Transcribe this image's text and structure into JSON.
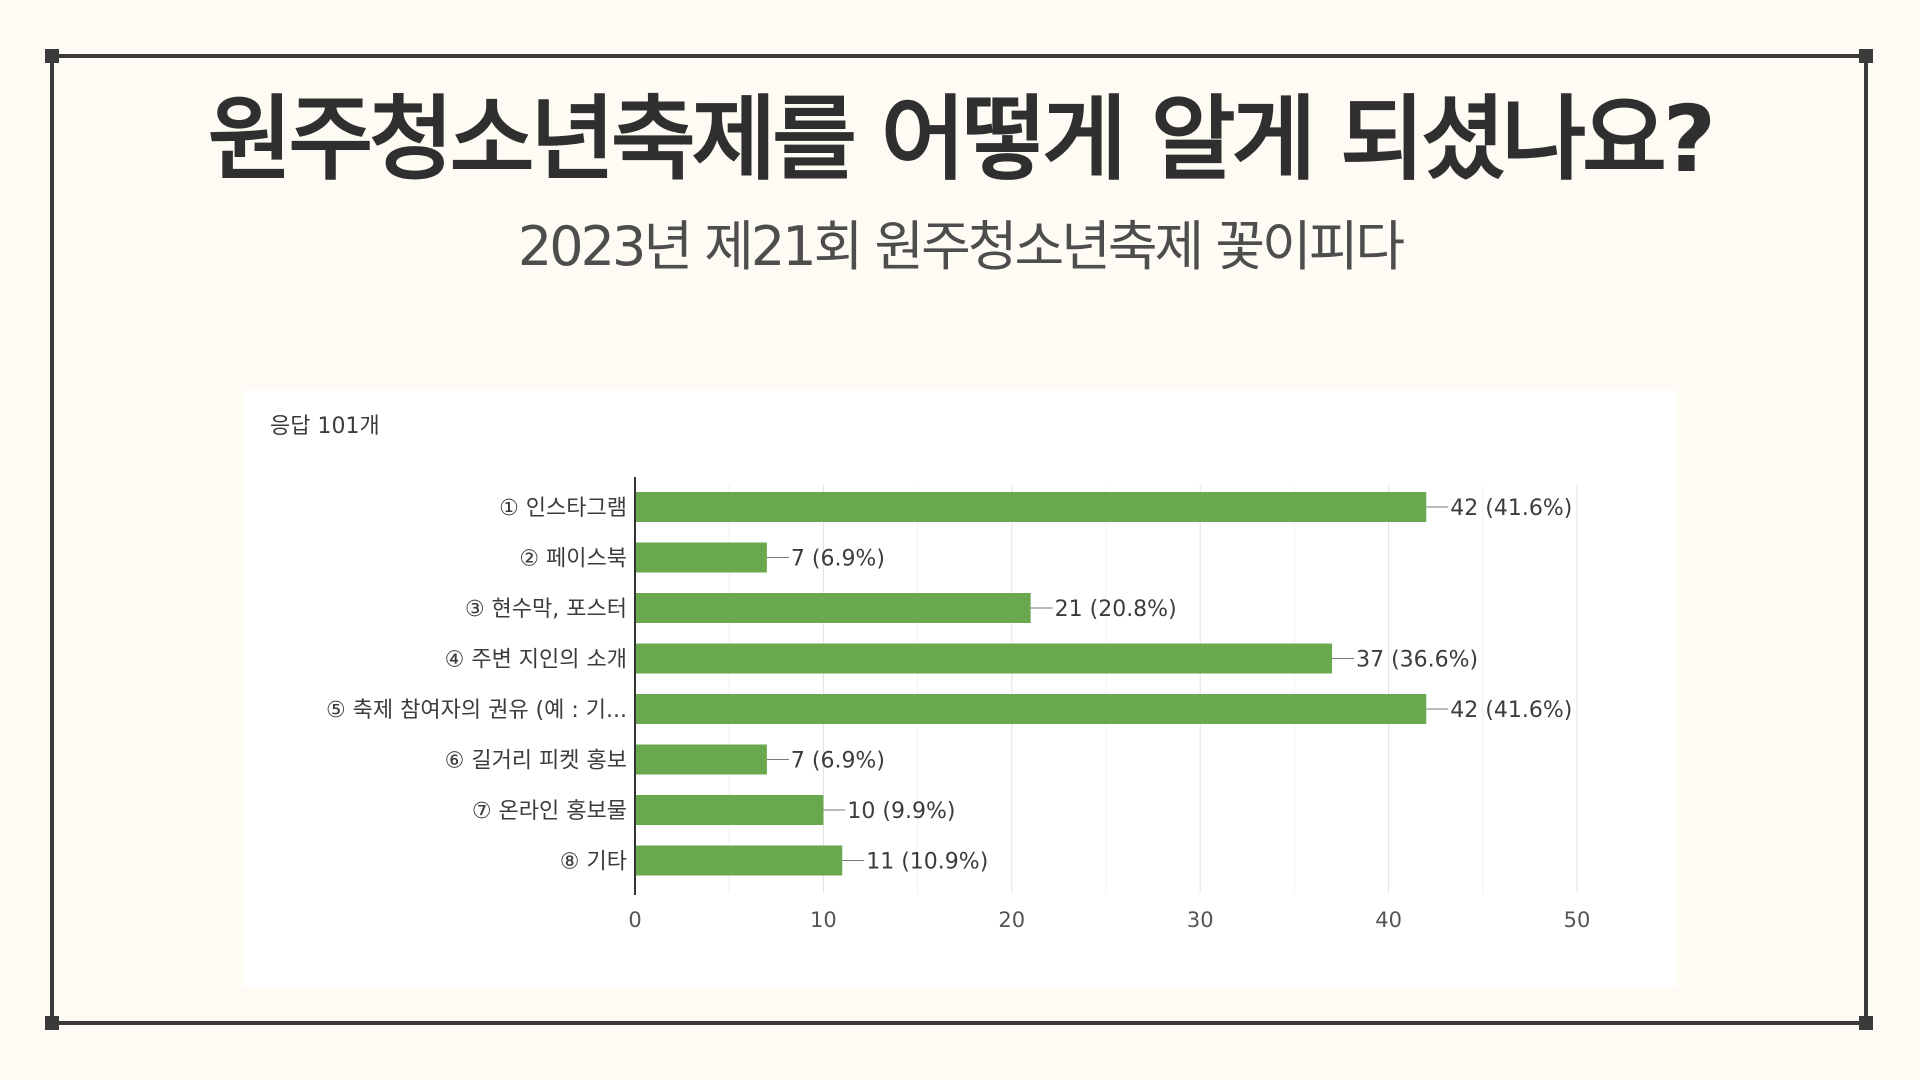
{
  "title": "원주청소년축제를 어떻게 알게 되셨나요?",
  "subtitle": "2023년 제21회 원주청소년축제 꽃이피다",
  "chart_data": {
    "type": "bar",
    "orientation": "horizontal",
    "response_count_label": "응답 101개",
    "categories": [
      "① 인스타그램",
      "② 페이스북",
      "③ 현수막, 포스터",
      "④ 주변 지인의 소개",
      "⑤ 축제 참여자의 권유 (예 : 기...",
      "⑥ 길거리 피켓 홍보",
      "⑦ 온라인 홍보물",
      "⑧ 기타"
    ],
    "values": [
      42,
      7,
      21,
      37,
      42,
      7,
      10,
      11
    ],
    "value_labels": [
      "42 (41.6%)",
      "7 (6.9%)",
      "21 (20.8%)",
      "37 (36.6%)",
      "42 (41.6%)",
      "7 (6.9%)",
      "10 (9.9%)",
      "11 (10.9%)"
    ],
    "xlim": [
      0,
      50
    ],
    "xticks": [
      0,
      10,
      20,
      30,
      40,
      50
    ],
    "bar_color": "#6aa84f",
    "grid": true
  }
}
